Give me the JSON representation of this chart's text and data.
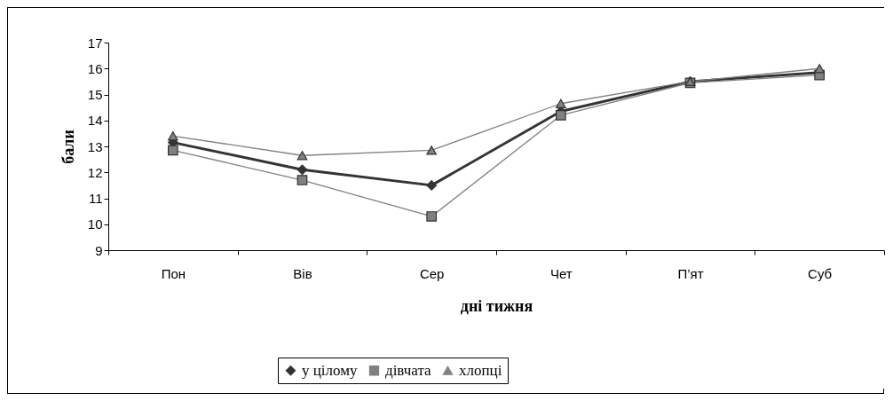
{
  "chart_data": {
    "type": "line",
    "xlabel": "дні тижня",
    "ylabel": "бали",
    "categories": [
      "Пон",
      "Вів",
      "Сер",
      "Чет",
      "П’ят",
      "Суб"
    ],
    "series": [
      {
        "name": "у цілому",
        "color": "#333333",
        "marker": "diamond",
        "values": [
          13.15,
          12.1,
          11.5,
          14.35,
          15.5,
          15.85
        ]
      },
      {
        "name": "дівчата",
        "color": "#808080",
        "marker": "square",
        "values": [
          12.85,
          11.7,
          10.3,
          14.2,
          15.45,
          15.75
        ]
      },
      {
        "name": "хлопці",
        "color": "#808080",
        "marker": "triangle",
        "values": [
          13.4,
          12.65,
          12.85,
          14.65,
          15.5,
          16.0
        ]
      }
    ],
    "ylim": [
      9,
      17
    ],
    "yticks": [
      9,
      10,
      11,
      12,
      13,
      14,
      15,
      16,
      17
    ],
    "grid": false,
    "legend": "bottom",
    "line_style": "solid"
  }
}
